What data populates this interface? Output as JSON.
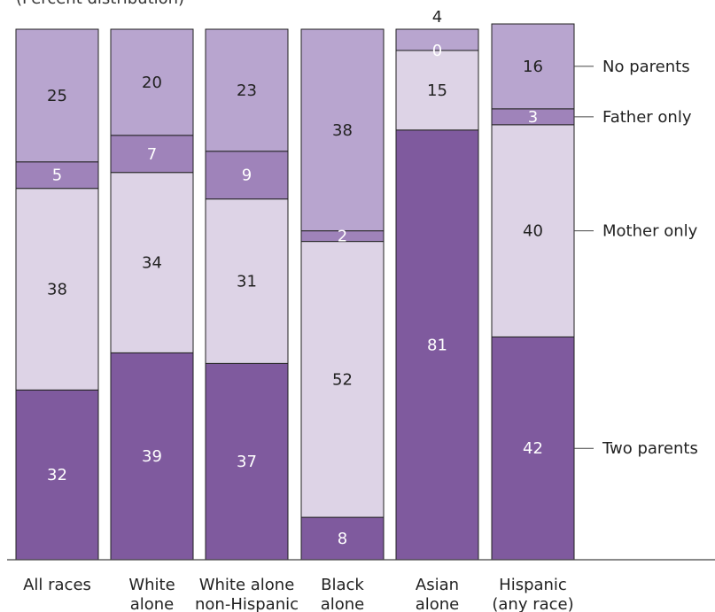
{
  "chart_data": {
    "type": "bar",
    "stacked": true,
    "subtitle": "(Percent distribution)",
    "categories": [
      [
        "All races"
      ],
      [
        "White",
        "alone"
      ],
      [
        "White alone",
        "non-Hispanic"
      ],
      [
        "Black",
        "alone"
      ],
      [
        "Asian",
        "alone"
      ],
      [
        "Hispanic",
        "(any race)"
      ]
    ],
    "series": [
      {
        "name": "Two parents",
        "values": [
          32,
          39,
          37,
          8,
          81,
          42
        ],
        "color": "#7f5a9e",
        "label_color": "#ffffff"
      },
      {
        "name": "Mother only",
        "values": [
          38,
          34,
          31,
          52,
          15,
          40
        ],
        "color": "#ddd3e6",
        "label_color": "#222222"
      },
      {
        "name": "Father only",
        "values": [
          5,
          7,
          9,
          2,
          0,
          3
        ],
        "color": "#9f83ba",
        "label_color": "#ffffff"
      },
      {
        "name": "No parents",
        "values": [
          25,
          20,
          23,
          38,
          4,
          16
        ],
        "color": "#b8a5cf",
        "label_color": "#222222"
      }
    ],
    "ylim": [
      0,
      100
    ],
    "grid": false,
    "legend": "right"
  }
}
